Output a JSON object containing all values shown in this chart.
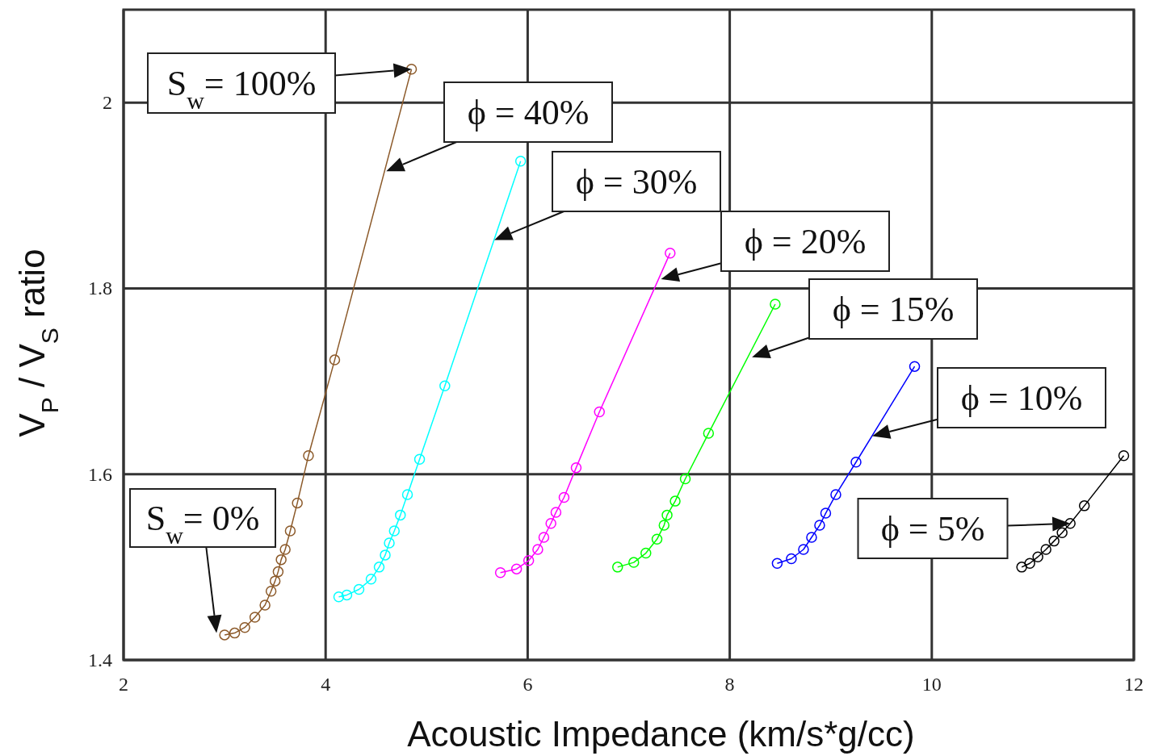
{
  "chart_data": {
    "type": "line",
    "xlabel": "Acoustic Impedance (km/s*g/cc)",
    "ylabel": "V$_{P}$ / V$_{S}$ ratio",
    "xlim": [
      2,
      12
    ],
    "xticks": [
      2,
      4,
      6,
      8,
      10,
      12
    ],
    "ylim": [
      1.4,
      2.1
    ],
    "yticks": [
      1.4,
      1.6,
      1.8,
      2
    ],
    "grid": true,
    "marker": "circle",
    "series": [
      {
        "color": "#8c5a2a",
        "x": [
          3.0,
          3.1,
          3.2,
          3.3,
          3.4,
          3.46,
          3.5,
          3.53,
          3.56,
          3.6,
          3.65,
          3.72,
          3.83,
          4.09,
          4.85
        ],
        "values": [
          1.427,
          1.429,
          1.435,
          1.446,
          1.459,
          1.474,
          1.485,
          1.495,
          1.508,
          1.519,
          1.539,
          1.569,
          1.62,
          1.723,
          2.036
        ]
      },
      {
        "color": "#00ffff",
        "x": [
          4.13,
          4.21,
          4.33,
          4.45,
          4.53,
          4.59,
          4.63,
          4.68,
          4.74,
          4.81,
          4.93,
          5.18,
          5.93
        ],
        "values": [
          1.468,
          1.47,
          1.476,
          1.487,
          1.5,
          1.513,
          1.526,
          1.539,
          1.556,
          1.578,
          1.616,
          1.695,
          1.937
        ]
      },
      {
        "color": "#ff00ff",
        "x": [
          5.73,
          5.89,
          6.01,
          6.1,
          6.16,
          6.23,
          6.28,
          6.36,
          6.48,
          6.71,
          7.41
        ],
        "values": [
          1.494,
          1.498,
          1.507,
          1.519,
          1.532,
          1.547,
          1.559,
          1.575,
          1.607,
          1.667,
          1.838
        ]
      },
      {
        "color": "#00ff00",
        "x": [
          6.89,
          7.05,
          7.17,
          7.28,
          7.35,
          7.38,
          7.46,
          7.56,
          7.79,
          8.45
        ],
        "values": [
          1.5,
          1.505,
          1.515,
          1.53,
          1.545,
          1.556,
          1.571,
          1.595,
          1.644,
          1.783
        ]
      },
      {
        "color": "#0000ff",
        "x": [
          8.47,
          8.61,
          8.73,
          8.81,
          8.89,
          8.95,
          9.05,
          9.25,
          9.83
        ],
        "values": [
          1.504,
          1.509,
          1.519,
          1.532,
          1.545,
          1.558,
          1.578,
          1.613,
          1.716
        ]
      },
      {
        "color": "#000000",
        "x": [
          10.89,
          10.97,
          11.05,
          11.13,
          11.21,
          11.29,
          11.37,
          11.51,
          11.9
        ],
        "values": [
          1.5,
          1.504,
          1.511,
          1.519,
          1.528,
          1.537,
          1.547,
          1.566,
          1.62
        ]
      }
    ],
    "annotations": [
      {
        "text": "S$_{w}$= 100%",
        "x": 4.85,
        "y": 2.036
      },
      {
        "text": "ϕ = 40%",
        "x": 4.6,
        "y": 1.926
      },
      {
        "text": "ϕ = 30%",
        "x": 5.67,
        "y": 1.852
      },
      {
        "text": "ϕ = 20%",
        "x": 7.32,
        "y": 1.81
      },
      {
        "text": "ϕ = 15%",
        "x": 8.22,
        "y": 1.726
      },
      {
        "text": "ϕ = 10%",
        "x": 9.41,
        "y": 1.641
      },
      {
        "text": "ϕ = 5%",
        "x": 11.37,
        "y": 1.547
      },
      {
        "text": "S$_{w}$= 0%",
        "x": 2.92,
        "y": 1.429
      }
    ]
  }
}
